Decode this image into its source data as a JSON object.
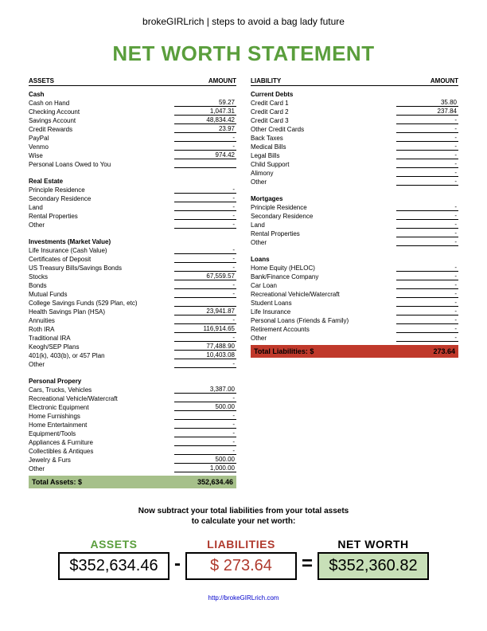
{
  "header_tag": "brokeGIRLrich | steps to avoid a bag lady future",
  "title": "NET WORTH STATEMENT",
  "link_text": "http://brokeGIRLrich.com",
  "colors": {
    "title": "#5a9e3c",
    "assets_total_bg": "#a6c08a",
    "liab_total_bg": "#c0392b",
    "liab_text": "#b03a2e",
    "networth_bg": "#c8e0b8"
  },
  "assets": {
    "head_left": "ASSETS",
    "head_right": "AMOUNT",
    "sections": [
      {
        "label": "Cash",
        "rows": [
          {
            "label": "Cash on Hand",
            "value": "59.27"
          },
          {
            "label": "Checking Account",
            "value": "1,047.31"
          },
          {
            "label": "Savings Account",
            "value": "48,834.42"
          },
          {
            "label": "Credit Rewards",
            "value": "23.97"
          },
          {
            "label": "PayPal",
            "value": "-"
          },
          {
            "label": "Venmo",
            "value": "-"
          },
          {
            "label": "Wise",
            "value": "974.42"
          },
          {
            "label": "Personal Loans Owed to You",
            "value": ""
          }
        ]
      },
      {
        "label": "Real Estate",
        "rows": [
          {
            "label": "Principle Residence",
            "value": "-"
          },
          {
            "label": "Secondary Residence",
            "value": "-"
          },
          {
            "label": "Land",
            "value": "-"
          },
          {
            "label": "Rental Properties",
            "value": "-"
          },
          {
            "label": "Other",
            "value": "-"
          }
        ]
      },
      {
        "label": "Investments (Market Value)",
        "rows": [
          {
            "label": "Life Insurance (Cash Value)",
            "value": "-"
          },
          {
            "label": "Certificates of Deposit",
            "value": "-"
          },
          {
            "label": "US Treasury Bills/Savings Bonds",
            "value": "-"
          },
          {
            "label": "Stocks",
            "value": "67,559.57"
          },
          {
            "label": "Bonds",
            "value": "-"
          },
          {
            "label": "Mutual Funds",
            "value": "-"
          },
          {
            "label": "College Savings Funds (529 Plan, etc)",
            "value": ""
          },
          {
            "label": "Health Savings Plan (HSA)",
            "value": "23,941.87"
          },
          {
            "label": "Annuities",
            "value": "-"
          },
          {
            "label": "Roth IRA",
            "value": "116,914.65"
          },
          {
            "label": "Traditional IRA",
            "value": "-"
          },
          {
            "label": "Keogh/SEP Plans",
            "value": "77,488.90"
          },
          {
            "label": "401(k), 403(b), or 457 Plan",
            "value": "10,403.08"
          },
          {
            "label": "Other",
            "value": "-"
          }
        ]
      },
      {
        "label": "Personal Propery",
        "rows": [
          {
            "label": "Cars, Trucks, Vehicles",
            "value": "3,387.00"
          },
          {
            "label": "Recreational Vehicle/Watercraft",
            "value": "-"
          },
          {
            "label": "Electronic Equipment",
            "value": "500.00"
          },
          {
            "label": "Home Furnishings",
            "value": "-"
          },
          {
            "label": "Home Entertainment",
            "value": "-"
          },
          {
            "label": "Equipment/Tools",
            "value": "-"
          },
          {
            "label": "Appliances & Furniture",
            "value": "-"
          },
          {
            "label": "Collectibles & Antiques",
            "value": "-"
          },
          {
            "label": "Jewelry & Furs",
            "value": "500.00"
          },
          {
            "label": "Other",
            "value": "1,000.00"
          }
        ]
      }
    ],
    "total_label": "Total Assets: $",
    "total_value": "352,634.46"
  },
  "liabilities": {
    "head_left": "LIABILITY",
    "head_right": "AMOUNT",
    "sections": [
      {
        "label": "Current Debts",
        "rows": [
          {
            "label": "Credit Card 1",
            "value": "35.80"
          },
          {
            "label": "Credit Card 2",
            "value": "237.84"
          },
          {
            "label": "Credit Card 3",
            "value": "-"
          },
          {
            "label": "Other Credit Cards",
            "value": "-"
          },
          {
            "label": "Back Taxes",
            "value": "-"
          },
          {
            "label": "Medical Bills",
            "value": "-"
          },
          {
            "label": "Legal Bills",
            "value": "-"
          },
          {
            "label": "Child Support",
            "value": "-"
          },
          {
            "label": "Alimony",
            "value": "-"
          },
          {
            "label": "Other",
            "value": "-"
          }
        ]
      },
      {
        "label": "Mortgages",
        "rows": [
          {
            "label": "Principle Residence",
            "value": "-"
          },
          {
            "label": "Secondary Residence",
            "value": "-"
          },
          {
            "label": "Land",
            "value": "-"
          },
          {
            "label": "Rental Properties",
            "value": "-"
          },
          {
            "label": "Other",
            "value": "-"
          }
        ]
      },
      {
        "label": "Loans",
        "rows": [
          {
            "label": "Home Equity (HELOC)",
            "value": "-"
          },
          {
            "label": "Bank/Finance Company",
            "value": "-"
          },
          {
            "label": "Car Loan",
            "value": "-"
          },
          {
            "label": "Recreational Vehicle/Watercraft",
            "value": "-"
          },
          {
            "label": "Student Loans",
            "value": "-"
          },
          {
            "label": "Life Insurance",
            "value": "-"
          },
          {
            "label": "Personal Loans (Friends & Family)",
            "value": "-"
          },
          {
            "label": "Retirement Accounts",
            "value": "-"
          },
          {
            "label": "Other",
            "value": "-"
          }
        ]
      }
    ],
    "total_label": "Total Liabilities: $",
    "total_value": "273.64"
  },
  "instruction_l1": "Now subtract your total liabilities from your total assets",
  "instruction_l2": "to calculate your net worth:",
  "calc": {
    "assets_label": "ASSETS",
    "assets_value": "$352,634.46",
    "minus": "-",
    "liab_label": "LIABILITIES",
    "liab_value": "$   273.64",
    "equals": "=",
    "nw_label": "NET WORTH",
    "nw_value": "$352,360.82"
  }
}
